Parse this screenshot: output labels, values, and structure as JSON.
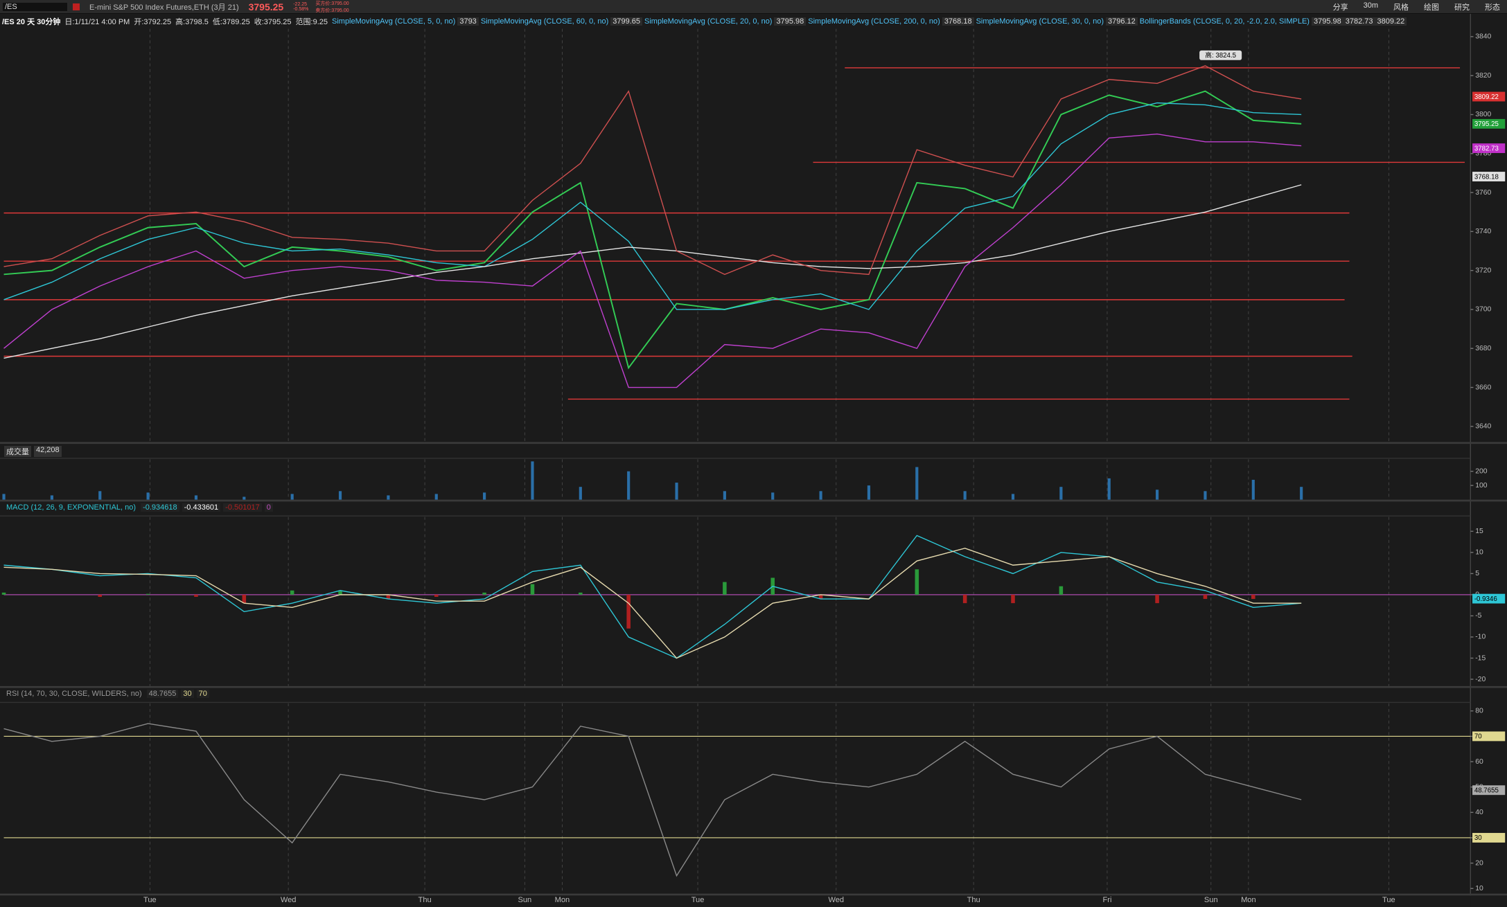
{
  "header": {
    "symbol": "/ES",
    "description": "E-mini S&P 500 Index Futures,ETH (3月 21)",
    "last": 3795.25,
    "change": -22.25,
    "change_pct": "-0.58%",
    "bid": "买方价:3795.00",
    "ask": "卖方价:3795.00",
    "buttons": [
      "分享",
      "30m",
      "风格",
      "绘图",
      "研究",
      "形态"
    ]
  },
  "chart_data": [
    {
      "type": "line",
      "title": "/ES 20 天 30分钟",
      "ohlc": [
        "日:1/11/21 4:00 PM",
        "开:3792.25",
        "高:3798.5",
        "低:3789.25",
        "收:3795.25",
        "范围:9.25"
      ],
      "studies": [
        {
          "name": "SimpleMovingAvg (CLOSE, 5, 0, no)",
          "values": [
            3793
          ]
        },
        {
          "name": "SimpleMovingAvg (CLOSE, 60, 0, no)",
          "values": [
            3799.65
          ]
        },
        {
          "name": "SimpleMovingAvg (CLOSE, 20, 0, no)",
          "values": [
            3795.98
          ]
        },
        {
          "name": "SimpleMovingAvg (CLOSE, 200, 0, no)",
          "values": [
            3768.18
          ]
        },
        {
          "name": "SimpleMovingAvg (CLOSE, 30, 0, no)",
          "values": [
            3796.12
          ]
        },
        {
          "name": "BollingerBands (CLOSE, 0, 20, -2.0, 2.0, SIMPLE)",
          "values": [
            3795.98,
            3782.73,
            3809.22
          ]
        }
      ],
      "xlim": [
        0,
        152.6
      ],
      "xticks": [
        {
          "value": 15.2,
          "label": "Tue"
        },
        {
          "value": 29.6,
          "label": "Wed"
        },
        {
          "value": 43.8,
          "label": "Thu"
        },
        {
          "value": 54.2,
          "label": "Sun"
        },
        {
          "value": 58.1,
          "label": "Mon"
        },
        {
          "value": 72.2,
          "label": "Tue"
        },
        {
          "value": 86.6,
          "label": "Wed"
        },
        {
          "value": 100.9,
          "label": "Thu"
        },
        {
          "value": 114.8,
          "label": "Fri"
        },
        {
          "value": 125.6,
          "label": "Sun"
        },
        {
          "value": 129.5,
          "label": "Mon"
        },
        {
          "value": 144.1,
          "label": "Tue"
        }
      ],
      "x": [
        0,
        5,
        10,
        15,
        20,
        25,
        30,
        35,
        40,
        45,
        50,
        55,
        60,
        65,
        70,
        75,
        80,
        85,
        90,
        95,
        100,
        105,
        110,
        115,
        120,
        125,
        130,
        135
      ],
      "ylim": [
        3632,
        3844
      ],
      "yticks": [
        3640,
        3660,
        3680,
        3700,
        3720,
        3740,
        3760,
        3780,
        3800,
        3820,
        3840
      ],
      "series": [
        {
          "color": "#33cc55",
          "values": [
            3718,
            3720,
            3732,
            3742,
            3744,
            3722,
            3732,
            3730,
            3727,
            3720,
            3724,
            3750,
            3765,
            3670,
            3703,
            3700,
            3706,
            3700,
            3705,
            3765,
            3762,
            3752,
            3800,
            3810,
            3804,
            3812,
            3797,
            3795.25
          ]
        },
        {
          "color": "#2ec7d6",
          "values": [
            3705,
            3714,
            3726,
            3736,
            3742,
            3734,
            3730,
            3731,
            3728,
            3724,
            3722,
            3736,
            3755,
            3735,
            3700,
            3700,
            3705,
            3708,
            3700,
            3730,
            3752,
            3758,
            3785,
            3800,
            3806,
            3805,
            3801,
            3800
          ]
        },
        {
          "color": "#e8e8e8",
          "values": [
            3675,
            3680,
            3685,
            3691,
            3697,
            3702,
            3707,
            3711,
            3715,
            3719,
            3722,
            3726,
            3729,
            3732,
            3730,
            3727,
            3724,
            3722,
            3721,
            3722,
            3724,
            3728,
            3734,
            3740,
            3745,
            3750,
            3757,
            3764
          ]
        },
        {
          "color": "#d05050",
          "values": [
            3722,
            3726,
            3738,
            3748,
            3750,
            3745,
            3737,
            3736,
            3734,
            3730,
            3730,
            3756,
            3775,
            3812,
            3730,
            3718,
            3728,
            3720,
            3718,
            3782,
            3774,
            3768,
            3808,
            3818,
            3816,
            3825,
            3812,
            3808
          ]
        },
        {
          "color": "#c040d0",
          "values": [
            3680,
            3700,
            3712,
            3722,
            3730,
            3716,
            3720,
            3722,
            3720,
            3715,
            3714,
            3712,
            3730,
            3660,
            3660,
            3682,
            3680,
            3690,
            3688,
            3680,
            3722,
            3742,
            3764,
            3788,
            3790,
            3786,
            3786,
            3784
          ]
        }
      ],
      "levels": [
        {
          "value": 3824,
          "x": [
            87.5,
            151.5
          ]
        },
        {
          "value": 3775.5,
          "x": [
            84.2,
            152
          ]
        },
        {
          "value": 3749.5,
          "x": [
            0,
            140
          ]
        },
        {
          "value": 3724.8,
          "x": [
            0,
            140
          ]
        },
        {
          "value": 3705,
          "x": [
            0,
            139.5
          ]
        },
        {
          "value": 3676,
          "x": [
            0,
            140.3
          ]
        },
        {
          "value": 3654,
          "x": [
            58.7,
            140
          ]
        }
      ],
      "level_color": "#e03a3a",
      "annotation": {
        "text": "高: 3824.5",
        "x": 126.6,
        "y": 3824.5
      },
      "price_labels": [
        {
          "value": 3809.22,
          "color": "#d83030",
          "text_color": "#ffffff"
        },
        {
          "value": 3795.25,
          "color": "#22a03a",
          "text_color": "#ffffff"
        },
        {
          "value": 3782.73,
          "color": "#c030c8",
          "text_color": "#ffffff"
        },
        {
          "value": 3768.18,
          "color": "#e0e0e0",
          "text_color": "#000000"
        }
      ]
    },
    {
      "type": "bar",
      "name": "成交量",
      "total": {
        "value": 42208,
        "label": "42,208"
      },
      "color": "#2a6fa8",
      "ylim": [
        0,
        285
      ],
      "yticks": [
        100,
        200
      ],
      "values": [
        40,
        30,
        60,
        50,
        30,
        20,
        40,
        60,
        30,
        40,
        50,
        270,
        90,
        200,
        120,
        60,
        50,
        60,
        100,
        230,
        60,
        40,
        90,
        150,
        70,
        60,
        140,
        90
      ]
    },
    {
      "type": "macd",
      "name": "MACD (12, 26, 9, EXPONENTIAL, no)",
      "legend_values": [
        -0.934618,
        -0.433601,
        -0.501017,
        0
      ],
      "ylim": [
        -21.6,
        18.4
      ],
      "yticks": [
        -20,
        -15,
        -10,
        -5,
        0,
        5,
        10,
        15
      ],
      "series": [
        {
          "color": "#2ec7d6",
          "values": [
            7,
            6,
            4.5,
            5,
            4,
            -4,
            -2,
            1,
            -1,
            -2,
            -1,
            5.5,
            7,
            -10,
            -15,
            -7,
            2,
            -1,
            -1,
            14,
            9,
            5,
            10,
            9,
            3,
            1,
            -3,
            -2
          ]
        },
        {
          "color": "#e8dcb0",
          "values": [
            6.5,
            6,
            5,
            4.8,
            4.5,
            -2,
            -3,
            0,
            0,
            -1.5,
            -1.5,
            3,
            6.5,
            -2,
            -15,
            -10,
            -2,
            0,
            -1,
            8,
            11,
            7,
            8,
            9,
            5,
            2,
            -2,
            -2
          ]
        }
      ],
      "histogram": {
        "positive_color": "#2a9a3a",
        "negative_color": "#b02020",
        "values": [
          0.5,
          0,
          -0.5,
          0.2,
          -0.5,
          -2,
          1,
          1,
          -1,
          -0.5,
          0.5,
          2.5,
          0.5,
          -8,
          0,
          3,
          4,
          -1,
          0,
          6,
          -2,
          -2,
          2,
          0,
          -2,
          -1,
          -1,
          0
        ]
      },
      "zero_color": "#c050c0",
      "last_badge": {
        "value": -0.934618,
        "label": "-0.9346"
      }
    },
    {
      "type": "rsi",
      "name": "RSI (14, 70, 30, CLOSE, WILDERS, no)",
      "legend_values": [
        48.7655,
        30,
        70
      ],
      "ylim": [
        8,
        83
      ],
      "yticks": [
        10,
        20,
        30,
        40,
        50,
        60,
        70,
        80
      ],
      "series": [
        {
          "color": "#8a8a8a",
          "values": [
            73,
            68,
            70,
            75,
            72,
            45,
            28,
            55,
            52,
            48,
            45,
            50,
            74,
            70,
            15,
            45,
            55,
            52,
            50,
            55,
            68,
            55,
            50,
            65,
            70,
            55,
            50,
            45
          ]
        }
      ],
      "levels": [
        70,
        30
      ],
      "level_color": "#e0d890",
      "last_badge": 48.7655
    }
  ]
}
